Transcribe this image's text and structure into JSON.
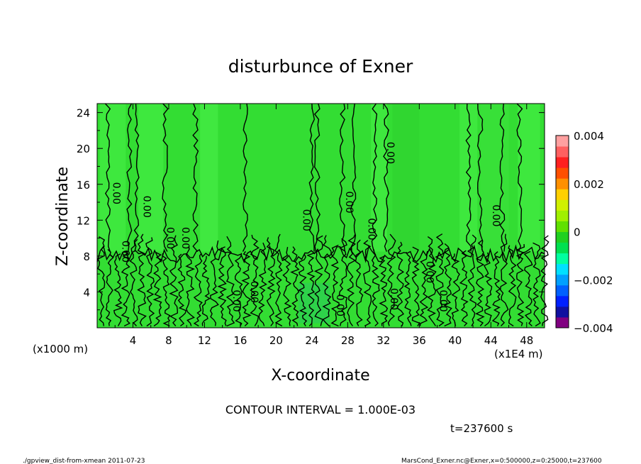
{
  "chart_data": {
    "type": "heatmap",
    "title": "disturbunce of Exner",
    "xlabel": "X-coordinate",
    "ylabel": "Z-coordinate",
    "x_unit_left": "(x1000 m)",
    "x_unit_right": "(x1E4 m)",
    "xlim": [
      0,
      50
    ],
    "ylim": [
      0,
      25
    ],
    "x_ticks": [
      "4",
      "8",
      "12",
      "16",
      "20",
      "24",
      "28",
      "32",
      "36",
      "40",
      "44",
      "48"
    ],
    "y_ticks": [
      "4",
      "8",
      "12",
      "16",
      "20",
      "24"
    ],
    "colorbar": {
      "range": [
        -0.004,
        0.004
      ],
      "tick_labels": [
        "0.004",
        "0.002",
        "0",
        "−0.002",
        "−0.004"
      ],
      "colors": [
        "#800080",
        "#1010a0",
        "#0020ff",
        "#0060ff",
        "#00a0ff",
        "#00e0ff",
        "#00ffa0",
        "#00e050",
        "#20d020",
        "#60e000",
        "#a0f000",
        "#d0f000",
        "#ffd000",
        "#ff9000",
        "#ff5000",
        "#ff2020",
        "#ff6060",
        "#ffa0a0"
      ]
    },
    "contour_labels": [
      {
        "text": "0.00",
        "x": 1.8,
        "y": 15
      },
      {
        "text": "0.00",
        "x": 2.8,
        "y": 8.5
      },
      {
        "text": "0.00",
        "x": 5.2,
        "y": 13.5
      },
      {
        "text": "0.00",
        "x": 7.8,
        "y": 10
      },
      {
        "text": "0.00",
        "x": 9.5,
        "y": 10
      },
      {
        "text": "0.00",
        "x": 15.2,
        "y": 3
      },
      {
        "text": "0.00",
        "x": 17.2,
        "y": 4
      },
      {
        "text": "0.00",
        "x": 23,
        "y": 12
      },
      {
        "text": "0.00",
        "x": 26.8,
        "y": 2.5
      },
      {
        "text": "0.00",
        "x": 27.8,
        "y": 14
      },
      {
        "text": "0.00",
        "x": 30.3,
        "y": 11
      },
      {
        "text": "0.00",
        "x": 32.4,
        "y": 19.5
      },
      {
        "text": "0.00",
        "x": 32.8,
        "y": 3.2
      },
      {
        "text": "0.00",
        "x": 36.8,
        "y": 6.2
      },
      {
        "text": "0.00",
        "x": 38.3,
        "y": 3
      },
      {
        "text": "0.00",
        "x": 44.2,
        "y": 12.5
      }
    ]
  },
  "contour_interval": "CONTOUR INTERVAL = 1.000E-03",
  "time_label": "t=237600 s",
  "footer_left": "./gpview_dist-from-xmean  2011-07-23",
  "footer_right": "MarsCond_Exner.nc@Exner,x=0:500000,z=0:25000,t=237600"
}
